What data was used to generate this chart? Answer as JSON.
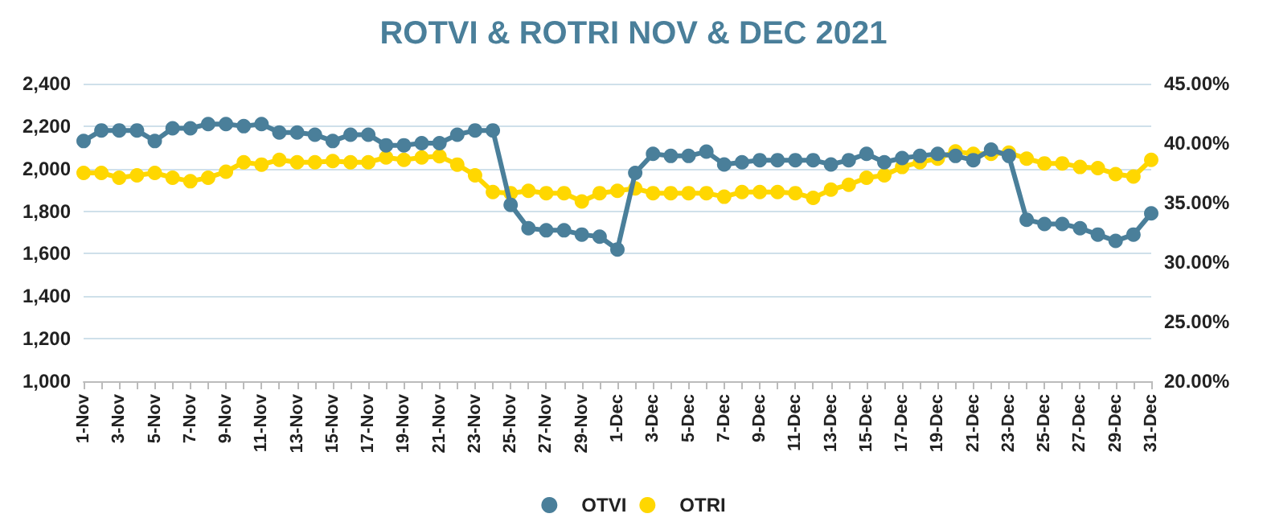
{
  "chart_data": {
    "type": "line",
    "title": "ROTVI & ROTRI NOV & DEC 2021",
    "categories": [
      "1-Nov",
      null,
      "3-Nov",
      null,
      "5-Nov",
      null,
      "7-Nov",
      null,
      "9-Nov",
      null,
      "11-Nov",
      null,
      "13-Nov",
      null,
      "15-Nov",
      null,
      "17-Nov",
      null,
      "19-Nov",
      null,
      "21-Nov",
      null,
      "23-Nov",
      null,
      "25-Nov",
      null,
      "27-Nov",
      null,
      "29-Nov",
      null,
      "1-Dec",
      null,
      "3-Dec",
      null,
      "5-Dec",
      null,
      "7-Dec",
      null,
      "9-Dec",
      null,
      "11-Dec",
      null,
      "13-Dec",
      null,
      "15-Dec",
      null,
      "17-Dec",
      null,
      "19-Dec",
      null,
      "21-Dec",
      null,
      "23-Dec",
      null,
      "25-Dec",
      null,
      "27-Dec",
      null,
      "29-Dec",
      null,
      "31-Dec"
    ],
    "series": [
      {
        "name": "OTVI",
        "color": "#4a7f9a",
        "values": [
          2130,
          2180,
          2180,
          2180,
          2130,
          2190,
          2190,
          2210,
          2210,
          2200,
          2210,
          2170,
          2170,
          2160,
          2130,
          2160,
          2160,
          2110,
          2110,
          2120,
          2120,
          2160,
          2180,
          2180,
          1830,
          1720,
          1710,
          1710,
          1690,
          1680,
          1620,
          1980,
          2070,
          2060,
          2060,
          2080,
          2020,
          2030,
          2040,
          2040,
          2040,
          2040,
          2020,
          2040,
          2070,
          2030,
          2050,
          2060,
          2070,
          2060,
          2040,
          2090,
          2060,
          1760,
          1740,
          1740,
          1720,
          1690,
          1660,
          1690,
          1790
        ]
      },
      {
        "name": "OTRI",
        "color": "#ffd700",
        "axis": "y2",
        "values": [
          37.5,
          37.5,
          37.1,
          37.3,
          37.5,
          37.1,
          36.8,
          37.1,
          37.6,
          38.4,
          38.2,
          38.6,
          38.4,
          38.4,
          38.5,
          38.4,
          38.4,
          38.8,
          38.6,
          38.8,
          38.9,
          38.2,
          37.3,
          35.9,
          35.8,
          36.0,
          35.8,
          35.8,
          35.1,
          35.8,
          36.0,
          36.2,
          35.8,
          35.8,
          35.8,
          35.8,
          35.5,
          35.9,
          35.9,
          35.9,
          35.8,
          35.4,
          36.1,
          36.5,
          37.1,
          37.3,
          38.0,
          38.4,
          38.7,
          39.3,
          39.1,
          39.1,
          39.2,
          38.7,
          38.3,
          38.3,
          38.0,
          37.9,
          37.4,
          37.2,
          38.6
        ]
      }
    ],
    "ylim": [
      1000,
      2400
    ],
    "yticks": [
      {
        "value": 1000,
        "label": "1,000"
      },
      {
        "value": 1200,
        "label": "1,200"
      },
      {
        "value": 1400,
        "label": "1,400"
      },
      {
        "value": 1600,
        "label": "1,600"
      },
      {
        "value": 1800,
        "label": "1,800"
      },
      {
        "value": 2000,
        "label": "2,000"
      },
      {
        "value": 2200,
        "label": "2,200"
      },
      {
        "value": 2400,
        "label": "2,400"
      }
    ],
    "y2lim": [
      20,
      45
    ],
    "y2ticks": [
      {
        "value": 20,
        "label": "20.00%"
      },
      {
        "value": 25,
        "label": "25.00%"
      },
      {
        "value": 30,
        "label": "30.00%"
      },
      {
        "value": 35,
        "label": "35.00%"
      },
      {
        "value": 40,
        "label": "40.00%"
      },
      {
        "value": 45,
        "label": "45.00%"
      }
    ],
    "grid": "y",
    "legend": "bottom",
    "marker": "circle",
    "line_style": "solid"
  }
}
